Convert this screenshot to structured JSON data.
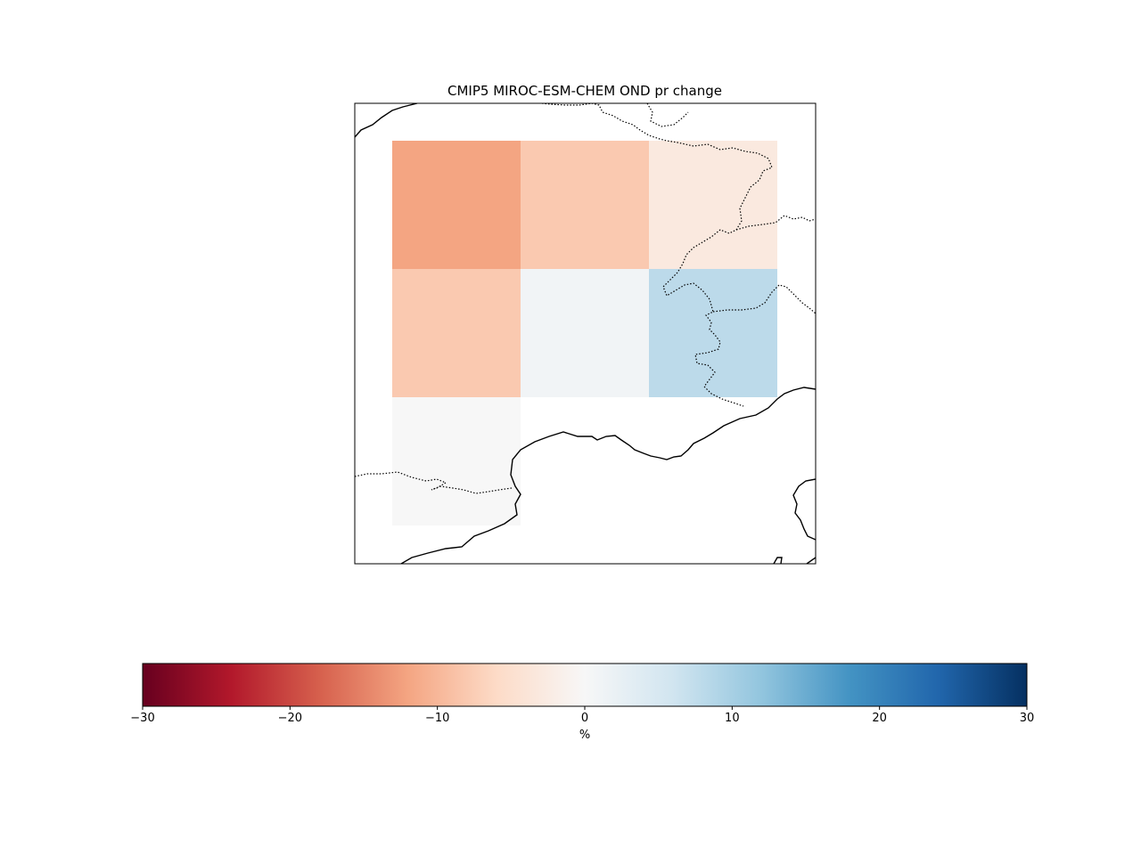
{
  "chart_data": {
    "type": "heatmap",
    "title": "CMIP5 MIROC-ESM-CHEM OND pr change",
    "grid": [
      [
        -12,
        -8,
        -3
      ],
      [
        -8,
        1,
        8
      ],
      [
        0,
        null,
        null
      ]
    ],
    "colorbar": {
      "cmap": "RdBu",
      "range": [
        -30,
        30
      ],
      "ticks": [
        -30,
        -20,
        -10,
        0,
        10,
        20,
        30
      ],
      "tick_labels": [
        "−30",
        "−20",
        "−10",
        "0",
        "10",
        "20",
        "30"
      ],
      "label": "%"
    }
  }
}
